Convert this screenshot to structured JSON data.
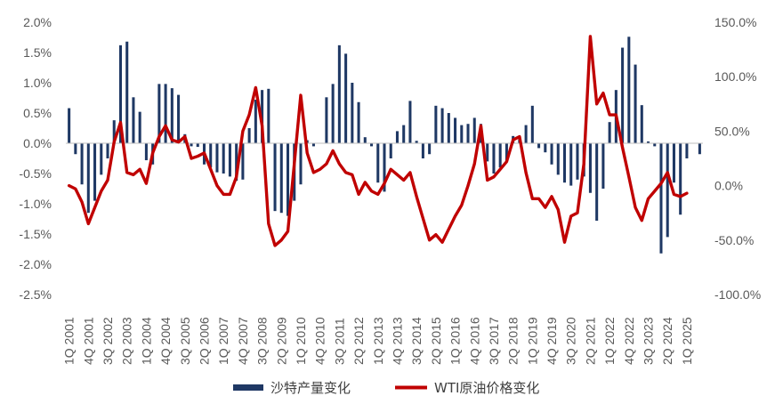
{
  "chart_data": {
    "type": "bar",
    "title": "",
    "left_axis": {
      "range": [
        -2.5,
        2.0
      ],
      "step": 0.5,
      "tick_labels": [
        "2.0%",
        "1.5%",
        "1.0%",
        "0.5%",
        "0.0%",
        "-0.5%",
        "-1.0%",
        "-1.5%",
        "-2.0%",
        "-2.5%"
      ]
    },
    "right_axis": {
      "range": [
        -100,
        150
      ],
      "step": 50,
      "tick_labels": [
        "150.0%",
        "100.0%",
        "50.0%",
        "0.0%",
        "-50.0%",
        "-100.0%"
      ]
    },
    "x_tick_labels": [
      "1Q 2001",
      "4Q 2001",
      "3Q 2002",
      "2Q 2003",
      "1Q 2004",
      "4Q 2004",
      "3Q 2005",
      "2Q 2006",
      "1Q 2007",
      "4Q 2007",
      "3Q 2008",
      "2Q 2009",
      "1Q 2010",
      "4Q 2010",
      "3Q 2011",
      "2Q 2012",
      "1Q 2013",
      "4Q 2013",
      "3Q 2014",
      "2Q 2015",
      "1Q 2016",
      "4Q 2016",
      "3Q 2017",
      "2Q 2018",
      "1Q 2019",
      "4Q 2019",
      "3Q 2020",
      "2Q 2021",
      "1Q 2022",
      "4Q 2022",
      "3Q 2023",
      "2Q 2024",
      "1Q 2025"
    ],
    "series": [
      {
        "name": "沙特产量变化",
        "type": "bar",
        "axis": "left",
        "color": "#1F3864",
        "values": [
          0.58,
          -0.18,
          -0.68,
          -1.15,
          -0.95,
          -0.52,
          -0.25,
          0.38,
          1.62,
          1.68,
          0.76,
          0.52,
          -0.28,
          -0.35,
          0.98,
          0.98,
          0.91,
          0.8,
          0.15,
          -0.05,
          -0.06,
          -0.35,
          -0.4,
          -0.48,
          -0.5,
          -0.55,
          -0.62,
          -0.6,
          0.25,
          0.72,
          0.88,
          0.9,
          -1.12,
          -1.15,
          -1.2,
          -0.95,
          -0.68,
          0.05,
          -0.05,
          0.0,
          0.76,
          0.98,
          1.62,
          1.48,
          1.0,
          0.68,
          0.1,
          -0.05,
          -0.65,
          -0.8,
          -0.25,
          0.2,
          0.3,
          0.7,
          0.04,
          -0.25,
          -0.18,
          0.62,
          0.58,
          0.5,
          0.42,
          0.3,
          0.32,
          0.42,
          0.32,
          -0.3,
          -0.5,
          -0.4,
          -0.3,
          0.12,
          0.06,
          0.3,
          0.62,
          -0.08,
          -0.15,
          -0.35,
          -0.52,
          -0.65,
          -0.7,
          -0.6,
          -0.55,
          -0.82,
          -1.28,
          -0.75,
          0.35,
          0.88,
          1.58,
          1.76,
          1.3,
          0.63,
          0.03,
          -0.05,
          -1.82,
          -1.55,
          -0.65,
          -1.18,
          -0.25,
          0.0,
          -0.18
        ]
      },
      {
        "name": "WTI原油价格变化",
        "type": "line",
        "axis": "right",
        "color": "#C00000",
        "values": [
          0,
          -3,
          -15,
          -35,
          -20,
          -5,
          5,
          40,
          58,
          12,
          10,
          15,
          2,
          30,
          45,
          55,
          42,
          40,
          45,
          25,
          27,
          30,
          15,
          0,
          -8,
          -8,
          8,
          50,
          65,
          90,
          55,
          -35,
          -55,
          -50,
          -42,
          20,
          83,
          30,
          12,
          15,
          20,
          32,
          20,
          12,
          10,
          -8,
          3,
          -5,
          -8,
          2,
          15,
          10,
          5,
          12,
          -10,
          -30,
          -50,
          -45,
          -52,
          -40,
          -28,
          -18,
          0,
          20,
          55,
          5,
          8,
          15,
          22,
          42,
          45,
          12,
          -12,
          -12,
          -20,
          -10,
          -22,
          -52,
          -28,
          -25,
          20,
          137,
          75,
          85,
          65,
          65,
          35,
          8,
          -20,
          -32,
          -12,
          -5,
          2,
          12,
          -8,
          -10,
          -7
        ]
      }
    ],
    "grid": false,
    "legend": {
      "placement": "bottom-center",
      "entries": [
        "沙特产量变化",
        "WTI原油价格变化"
      ]
    }
  }
}
